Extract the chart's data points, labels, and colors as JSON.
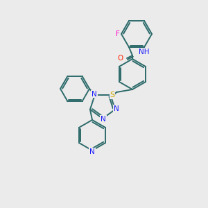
{
  "bg_color": "#ebebeb",
  "bond_color": "#2d6b6b",
  "atom_colors": {
    "N": "#1a1aff",
    "O": "#ff2200",
    "S": "#ccaa00",
    "F": "#ff00cc",
    "C": "#2d6b6b"
  }
}
